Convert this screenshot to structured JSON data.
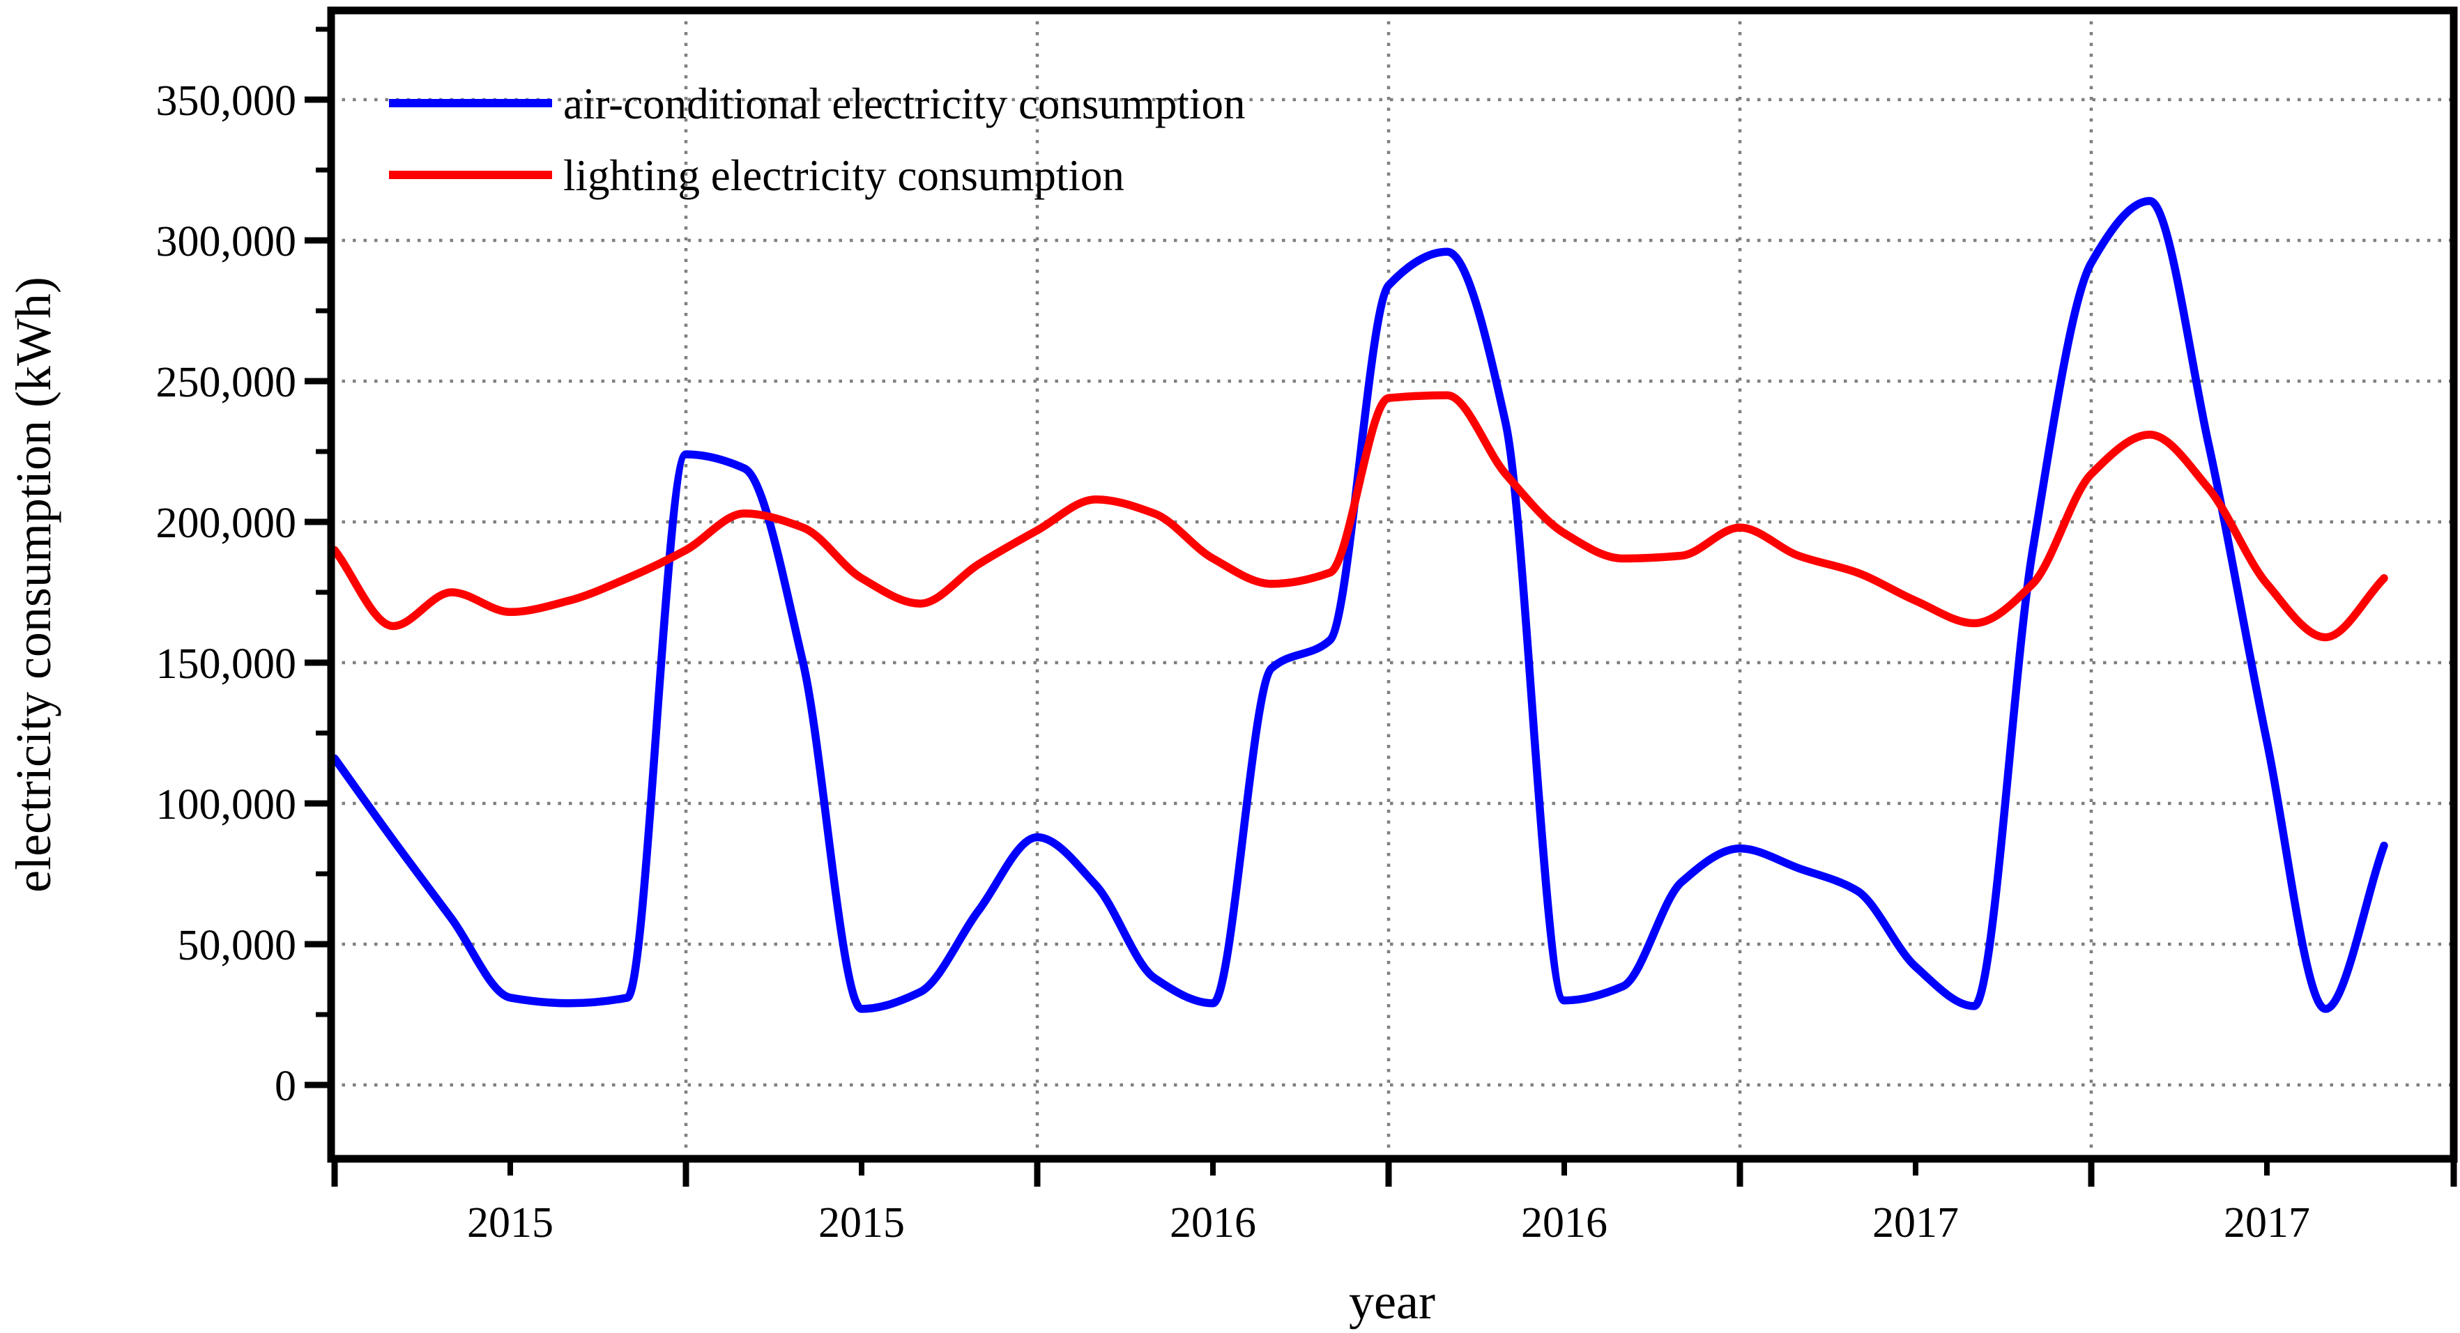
{
  "chart_data": {
    "type": "line",
    "title": "",
    "xlabel": "year",
    "ylabel": "electricity consumption (kWh)",
    "grid": "dotted",
    "grid_color": "#7f7f7f",
    "legend_position": "top-left",
    "x_months": [
      "2015-01",
      "2015-02",
      "2015-03",
      "2015-04",
      "2015-05",
      "2015-06",
      "2015-07",
      "2015-08",
      "2015-09",
      "2015-10",
      "2015-11",
      "2015-12",
      "2016-01",
      "2016-02",
      "2016-03",
      "2016-04",
      "2016-05",
      "2016-06",
      "2016-07",
      "2016-08",
      "2016-09",
      "2016-10",
      "2016-11",
      "2016-12",
      "2017-01",
      "2017-02",
      "2017-03",
      "2017-04",
      "2017-05",
      "2017-06",
      "2017-07",
      "2017-08",
      "2017-09",
      "2017-10",
      "2017-11",
      "2017-12"
    ],
    "series": [
      {
        "name": "air-conditional electricity consumption",
        "color": "#0000ff",
        "values": [
          116000,
          87000,
          59000,
          31000,
          29000,
          31000,
          224000,
          219000,
          150000,
          27000,
          33000,
          62000,
          88000,
          71000,
          38000,
          29000,
          148000,
          158000,
          284000,
          296000,
          235000,
          30000,
          35000,
          72000,
          84000,
          77000,
          69000,
          42000,
          28000,
          190000,
          292000,
          314000,
          228000,
          122000,
          27000,
          85000
        ]
      },
      {
        "name": "lighting electricity consumption",
        "color": "#ff0000",
        "values": [
          190000,
          163000,
          175000,
          168000,
          172000,
          180000,
          190000,
          203000,
          198000,
          180000,
          171000,
          185000,
          197000,
          208000,
          203000,
          187000,
          178000,
          182000,
          244000,
          245000,
          217000,
          196000,
          187000,
          188000,
          198000,
          188000,
          182000,
          172000,
          164000,
          178000,
          217000,
          231000,
          212000,
          178000,
          159000,
          180000
        ]
      }
    ],
    "ylim": [
      -26000,
      382000
    ],
    "ytick_values": [
      0,
      50000,
      100000,
      150000,
      200000,
      250000,
      300000,
      350000
    ],
    "ytick_labels": [
      "0",
      "50,000",
      "100,000",
      "150,000",
      "200,000",
      "250,000",
      "300,000",
      "350,000"
    ],
    "y_minor_tick_values": [
      25000,
      75000,
      125000,
      175000,
      225000,
      275000,
      325000,
      375000
    ],
    "xtick_labels": [
      "2015",
      "2015",
      "2016",
      "2016",
      "2017",
      "2017"
    ],
    "xtick_month_indices": [
      3,
      9,
      15,
      21,
      27,
      33
    ],
    "x_major_tick_month_indices": [
      0,
      6,
      12,
      18,
      24,
      30
    ],
    "x_gridline_month_indices": [
      6,
      12,
      18,
      24,
      30
    ]
  }
}
